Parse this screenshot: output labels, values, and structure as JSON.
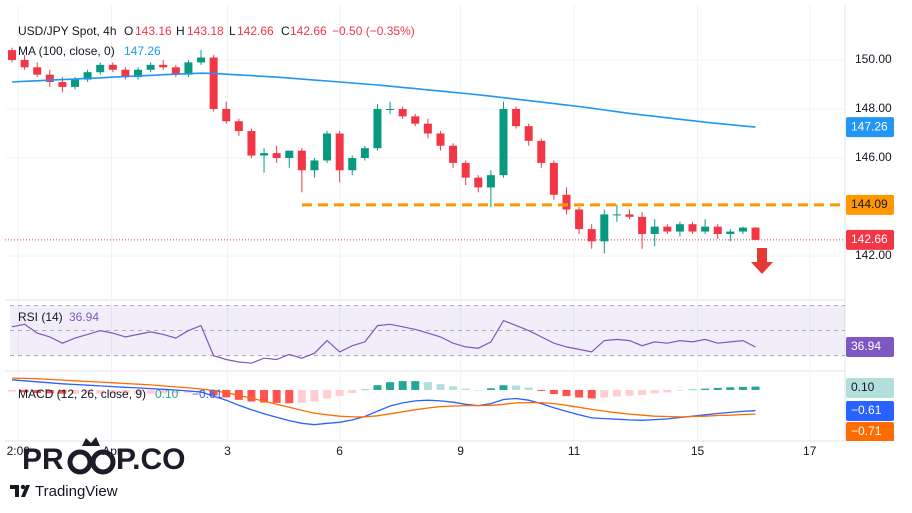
{
  "chart_data": {
    "type": "candlestick",
    "legend": {
      "symbol": "USD/JPY Spot, 4h",
      "o_label": "O",
      "o": 143.16,
      "h_label": "H",
      "h": 143.18,
      "l_label": "L",
      "l": 142.66,
      "c_label": "C",
      "c": 142.66,
      "change": "−0.50 (−0.35%)"
    },
    "up_color": "#089981",
    "down_color": "#f23645",
    "ylim": [
      140.33,
      151.63
    ],
    "yticks": [
      {
        "value": 150,
        "label": "150.00"
      },
      {
        "value": 148,
        "label": "148.00"
      },
      {
        "value": 146,
        "label": "146.00"
      },
      {
        "value": 142,
        "label": "142.00"
      }
    ],
    "xlim": [
      -0.5,
      66.1
    ],
    "xticks": [
      {
        "value": 0.5,
        "label": "2:00"
      },
      {
        "value": 7.9,
        "label": "Apr"
      },
      {
        "value": 17.1,
        "label": "3"
      },
      {
        "value": 26.0,
        "label": "6"
      },
      {
        "value": 35.6,
        "label": "9"
      },
      {
        "value": 44.6,
        "label": "11"
      },
      {
        "value": 54.4,
        "label": "15"
      },
      {
        "value": 63.3,
        "label": "17"
      }
    ],
    "grid": true,
    "candles": [
      [
        150.4,
        150.5,
        149.9,
        150.0
      ],
      [
        150.0,
        150.2,
        149.6,
        149.7
      ],
      [
        149.7,
        149.9,
        149.3,
        149.4
      ],
      [
        149.4,
        149.6,
        148.9,
        149.1
      ],
      [
        149.1,
        149.3,
        148.7,
        148.9
      ],
      [
        148.9,
        149.3,
        148.8,
        149.2
      ],
      [
        149.2,
        149.6,
        149.1,
        149.5
      ],
      [
        149.5,
        149.9,
        149.4,
        149.8
      ],
      [
        149.8,
        149.9,
        149.5,
        149.6
      ],
      [
        149.6,
        149.7,
        149.2,
        149.3
      ],
      [
        149.3,
        149.7,
        149.2,
        149.6
      ],
      [
        149.6,
        149.9,
        149.5,
        149.8
      ],
      [
        149.8,
        150.0,
        149.6,
        149.7
      ],
      [
        149.7,
        149.8,
        149.3,
        149.4
      ],
      [
        149.4,
        150.0,
        149.3,
        149.9
      ],
      [
        149.9,
        150.4,
        149.8,
        150.1
      ],
      [
        150.1,
        150.2,
        147.9,
        148.0
      ],
      [
        148.0,
        148.3,
        147.4,
        147.5
      ],
      [
        147.5,
        147.6,
        146.9,
        147.1
      ],
      [
        147.1,
        147.2,
        146.0,
        146.1
      ],
      [
        146.1,
        146.4,
        145.4,
        146.2
      ],
      [
        146.2,
        146.5,
        145.8,
        146.0
      ],
      [
        146.0,
        146.3,
        145.6,
        146.3
      ],
      [
        146.3,
        146.4,
        144.6,
        145.5
      ],
      [
        145.5,
        146.0,
        145.2,
        145.9
      ],
      [
        145.9,
        147.1,
        145.8,
        147.0
      ],
      [
        147.0,
        147.1,
        145.0,
        145.5
      ],
      [
        145.5,
        146.1,
        145.3,
        146.0
      ],
      [
        146.0,
        146.5,
        145.9,
        146.4
      ],
      [
        146.4,
        148.2,
        146.3,
        148.0
      ],
      [
        148.0,
        148.3,
        147.8,
        148.0
      ],
      [
        148.0,
        148.1,
        147.6,
        147.7
      ],
      [
        147.7,
        147.8,
        147.3,
        147.4
      ],
      [
        147.4,
        147.6,
        146.8,
        147.0
      ],
      [
        147.0,
        147.1,
        146.3,
        146.5
      ],
      [
        146.5,
        146.6,
        145.6,
        145.8
      ],
      [
        145.8,
        145.9,
        144.9,
        145.2
      ],
      [
        145.2,
        145.3,
        144.6,
        144.8
      ],
      [
        144.8,
        145.5,
        144.0,
        145.3
      ],
      [
        145.3,
        148.3,
        145.2,
        148.0
      ],
      [
        148.0,
        148.1,
        147.2,
        147.3
      ],
      [
        147.3,
        147.4,
        146.5,
        146.7
      ],
      [
        146.7,
        146.8,
        145.6,
        145.8
      ],
      [
        145.8,
        145.9,
        144.3,
        144.5
      ],
      [
        144.5,
        144.8,
        143.7,
        143.9
      ],
      [
        143.9,
        144.0,
        142.9,
        143.1
      ],
      [
        143.1,
        143.3,
        142.3,
        142.6
      ],
      [
        142.6,
        143.9,
        142.1,
        143.7
      ],
      [
        143.7,
        144.1,
        143.4,
        143.7
      ],
      [
        143.7,
        143.9,
        143.5,
        143.6
      ],
      [
        143.6,
        143.8,
        142.3,
        142.9
      ],
      [
        142.9,
        143.5,
        142.4,
        143.2
      ],
      [
        143.2,
        143.3,
        142.9,
        143.0
      ],
      [
        143.0,
        143.4,
        142.8,
        143.3
      ],
      [
        143.3,
        143.4,
        142.9,
        143.0
      ],
      [
        143.0,
        143.5,
        142.9,
        143.2
      ],
      [
        143.2,
        143.3,
        142.7,
        142.9
      ],
      [
        142.9,
        143.1,
        142.6,
        143.0
      ],
      [
        143.0,
        143.2,
        142.9,
        143.16
      ],
      [
        143.16,
        143.18,
        142.66,
        142.66
      ]
    ],
    "ma": {
      "name": "MA (100, close, 0)",
      "color": "#2196f3",
      "last": 147.26,
      "values": [
        149.1,
        149.13,
        149.15,
        149.18,
        149.2,
        149.22,
        149.25,
        149.27,
        149.3,
        149.32,
        149.35,
        149.37,
        149.4,
        149.42,
        149.44,
        149.46,
        149.45,
        149.42,
        149.39,
        149.36,
        149.33,
        149.3,
        149.26,
        149.22,
        149.18,
        149.14,
        149.1,
        149.06,
        149.02,
        148.98,
        148.93,
        148.88,
        148.83,
        148.78,
        148.73,
        148.68,
        148.63,
        148.58,
        148.52,
        148.46,
        148.4,
        148.34,
        148.28,
        148.22,
        148.16,
        148.1,
        148.03,
        147.96,
        147.89,
        147.82,
        147.76,
        147.7,
        147.64,
        147.58,
        147.52,
        147.46,
        147.41,
        147.36,
        147.31,
        147.26
      ]
    },
    "level": {
      "value": 144.09,
      "color": "#ff9800"
    },
    "last_price": {
      "value": 142.66,
      "color": "#f23645"
    },
    "rsi": {
      "name": "RSI (14)",
      "color": "#7e57c2",
      "last": 36.94,
      "ylim": [
        21,
        72
      ],
      "levels": [
        70,
        50,
        30
      ],
      "values": [
        53,
        55,
        48,
        45,
        40,
        44,
        47,
        50,
        48,
        45,
        47,
        49,
        47,
        44,
        50,
        54,
        30,
        27,
        25,
        24,
        28,
        27,
        31,
        28,
        32,
        42,
        33,
        38,
        41,
        54,
        55,
        53,
        51,
        48,
        45,
        40,
        37,
        36,
        41,
        58,
        54,
        50,
        45,
        40,
        37,
        35,
        33,
        42,
        43,
        42,
        38,
        41,
        40,
        42,
        41,
        43,
        40,
        41,
        42,
        36.94
      ]
    },
    "macd": {
      "name": "MACD (12, 26, close, 9)",
      "ylim": [
        -1.47,
        0.44
      ],
      "histogram": {
        "colors": [
          "#26a69a",
          "#b2dfdb",
          "#ff5252",
          "#ffcdd2"
        ],
        "last_label": "0.10",
        "values": [
          -0.05,
          -0.07,
          -0.09,
          -0.1,
          -0.11,
          -0.11,
          -0.11,
          -0.11,
          -0.11,
          -0.11,
          -0.11,
          -0.11,
          -0.1,
          -0.09,
          -0.09,
          -0.09,
          -0.16,
          -0.22,
          -0.29,
          -0.34,
          -0.37,
          -0.38,
          -0.39,
          -0.38,
          -0.34,
          -0.25,
          -0.18,
          -0.09,
          0.01,
          0.14,
          0.23,
          0.26,
          0.26,
          0.23,
          0.17,
          0.11,
          0.04,
          0.0,
          0.05,
          0.14,
          0.13,
          0.07,
          -0.03,
          -0.12,
          -0.18,
          -0.22,
          -0.25,
          -0.22,
          -0.19,
          -0.17,
          -0.15,
          -0.1,
          -0.07,
          -0.02,
          0.01,
          0.04,
          0.06,
          0.08,
          0.09,
          0.1
        ]
      },
      "line": {
        "color": "#2962ff",
        "last_label": "−0.61",
        "values": [
          0.3,
          0.27,
          0.24,
          0.21,
          0.18,
          0.16,
          0.14,
          0.12,
          0.1,
          0.08,
          0.06,
          0.04,
          0.02,
          0.0,
          -0.03,
          -0.06,
          -0.18,
          -0.3,
          -0.45,
          -0.58,
          -0.7,
          -0.8,
          -0.9,
          -0.98,
          -1.02,
          -0.98,
          -0.95,
          -0.88,
          -0.78,
          -0.62,
          -0.47,
          -0.38,
          -0.32,
          -0.3,
          -0.32,
          -0.36,
          -0.42,
          -0.46,
          -0.4,
          -0.28,
          -0.25,
          -0.3,
          -0.4,
          -0.52,
          -0.63,
          -0.73,
          -0.82,
          -0.84,
          -0.86,
          -0.88,
          -0.89,
          -0.87,
          -0.85,
          -0.81,
          -0.77,
          -0.73,
          -0.69,
          -0.66,
          -0.63,
          -0.61
        ]
      },
      "signal": {
        "color": "#ff6d00",
        "last_label": "−0.71",
        "values": [
          0.35,
          0.34,
          0.33,
          0.31,
          0.29,
          0.27,
          0.25,
          0.23,
          0.21,
          0.19,
          0.17,
          0.15,
          0.12,
          0.09,
          0.06,
          0.03,
          -0.02,
          -0.08,
          -0.16,
          -0.24,
          -0.33,
          -0.42,
          -0.51,
          -0.6,
          -0.68,
          -0.73,
          -0.77,
          -0.79,
          -0.79,
          -0.76,
          -0.7,
          -0.64,
          -0.58,
          -0.53,
          -0.49,
          -0.47,
          -0.46,
          -0.46,
          -0.45,
          -0.42,
          -0.38,
          -0.37,
          -0.37,
          -0.4,
          -0.45,
          -0.51,
          -0.57,
          -0.62,
          -0.67,
          -0.71,
          -0.74,
          -0.77,
          -0.78,
          -0.79,
          -0.78,
          -0.77,
          -0.75,
          -0.74,
          -0.72,
          -0.71
        ]
      }
    },
    "watermark": {
      "left": "PR",
      "right": "P.CO"
    },
    "brand": "TradingView"
  }
}
